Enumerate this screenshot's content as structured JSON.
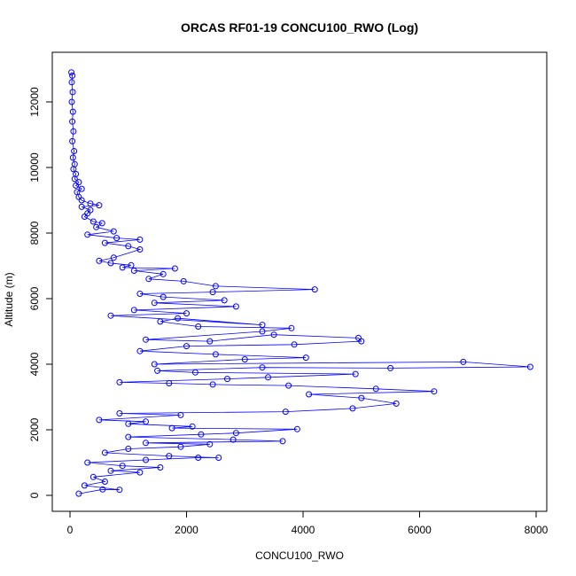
{
  "chart_data": {
    "type": "scatter",
    "title": "ORCAS RF01-19 CONCU100_RWO (Log)",
    "xlabel": "CONCU100_RWO",
    "ylabel": "Altitude (m)",
    "xlim": [
      0,
      8000
    ],
    "ylim": [
      0,
      13000
    ],
    "xticks": [
      0,
      2000,
      4000,
      6000,
      8000
    ],
    "yticks": [
      0,
      2000,
      4000,
      6000,
      8000,
      10000,
      12000
    ],
    "grid": false,
    "legend": "none",
    "point_style": "open-circle",
    "connect_points": true,
    "color": "#0000ff",
    "note": "",
    "series": [
      {
        "name": "",
        "points": [
          [
            150,
            50
          ],
          [
            560,
            180
          ],
          [
            850,
            170
          ],
          [
            250,
            300
          ],
          [
            600,
            420
          ],
          [
            400,
            560
          ],
          [
            1200,
            700
          ],
          [
            700,
            750
          ],
          [
            1550,
            850
          ],
          [
            900,
            900
          ],
          [
            300,
            1000
          ],
          [
            1300,
            1080
          ],
          [
            2200,
            1150
          ],
          [
            2550,
            1150
          ],
          [
            1700,
            1200
          ],
          [
            600,
            1300
          ],
          [
            1000,
            1420
          ],
          [
            1900,
            1480
          ],
          [
            2400,
            1560
          ],
          [
            1300,
            1600
          ],
          [
            3650,
            1650
          ],
          [
            2800,
            1700
          ],
          [
            1000,
            1780
          ],
          [
            2250,
            1860
          ],
          [
            2850,
            1900
          ],
          [
            3900,
            2020
          ],
          [
            1750,
            2050
          ],
          [
            2100,
            2100
          ],
          [
            1000,
            2180
          ],
          [
            1300,
            2250
          ],
          [
            500,
            2300
          ],
          [
            1900,
            2450
          ],
          [
            850,
            2500
          ],
          [
            3700,
            2550
          ],
          [
            4850,
            2650
          ],
          [
            5600,
            2800
          ],
          [
            5000,
            2970
          ],
          [
            4100,
            3080
          ],
          [
            6250,
            3170
          ],
          [
            5250,
            3250
          ],
          [
            3750,
            3350
          ],
          [
            2450,
            3380
          ],
          [
            1700,
            3420
          ],
          [
            850,
            3450
          ],
          [
            2700,
            3550
          ],
          [
            3400,
            3600
          ],
          [
            4900,
            3700
          ],
          [
            2150,
            3750
          ],
          [
            1500,
            3800
          ],
          [
            3300,
            3900
          ],
          [
            5500,
            3880
          ],
          [
            7900,
            3920
          ],
          [
            6750,
            4070
          ],
          [
            1450,
            4000
          ],
          [
            3000,
            4150
          ],
          [
            4050,
            4200
          ],
          [
            2500,
            4300
          ],
          [
            1200,
            4400
          ],
          [
            2000,
            4550
          ],
          [
            3850,
            4600
          ],
          [
            5000,
            4700
          ],
          [
            4950,
            4800
          ],
          [
            3500,
            4900
          ],
          [
            2400,
            4700
          ],
          [
            1300,
            4750
          ],
          [
            3300,
            5000
          ],
          [
            3800,
            5100
          ],
          [
            2200,
            5150
          ],
          [
            1550,
            5300
          ],
          [
            1850,
            5400
          ],
          [
            3300,
            5200
          ],
          [
            700,
            5480
          ],
          [
            2000,
            5550
          ],
          [
            1100,
            5650
          ],
          [
            2850,
            5760
          ],
          [
            1450,
            5870
          ],
          [
            2650,
            5950
          ],
          [
            1600,
            6050
          ],
          [
            1200,
            6150
          ],
          [
            2450,
            6200
          ],
          [
            4200,
            6280
          ],
          [
            2500,
            6380
          ],
          [
            1950,
            6530
          ],
          [
            1350,
            6600
          ],
          [
            1600,
            6750
          ],
          [
            1100,
            6850
          ],
          [
            1800,
            6920
          ],
          [
            900,
            6950
          ],
          [
            1050,
            7020
          ],
          [
            700,
            7080
          ],
          [
            500,
            7150
          ],
          [
            750,
            7250
          ],
          [
            1200,
            7500
          ],
          [
            1000,
            7600
          ],
          [
            600,
            7700
          ],
          [
            1200,
            7800
          ],
          [
            800,
            7850
          ],
          [
            300,
            7950
          ],
          [
            750,
            8050
          ],
          [
            450,
            8180
          ],
          [
            550,
            8300
          ],
          [
            400,
            8350
          ],
          [
            250,
            8500
          ],
          [
            300,
            8600
          ],
          [
            350,
            8700
          ],
          [
            200,
            8800
          ],
          [
            500,
            8850
          ],
          [
            350,
            8900
          ],
          [
            200,
            9000
          ],
          [
            150,
            9100
          ],
          [
            120,
            9250
          ],
          [
            200,
            9350
          ],
          [
            100,
            9450
          ],
          [
            150,
            9550
          ],
          [
            80,
            9650
          ],
          [
            100,
            9800
          ],
          [
            60,
            9950
          ],
          [
            80,
            10100
          ],
          [
            50,
            10300
          ],
          [
            70,
            10500
          ],
          [
            40,
            10800
          ],
          [
            60,
            11100
          ],
          [
            40,
            11400
          ],
          [
            50,
            11700
          ],
          [
            30,
            12000
          ],
          [
            45,
            12300
          ],
          [
            30,
            12600
          ],
          [
            40,
            12800
          ],
          [
            25,
            12900
          ]
        ]
      }
    ]
  }
}
